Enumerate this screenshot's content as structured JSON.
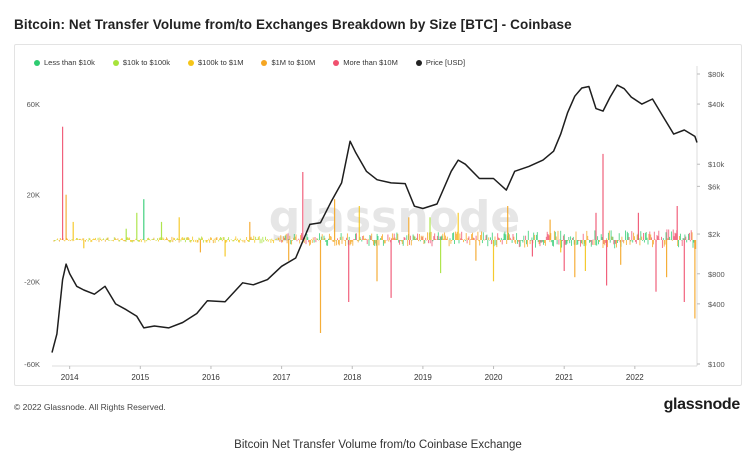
{
  "title": "Bitcoin: Net Transfer Volume from/to Exchanges Breakdown by Size [BTC] - Coinbase",
  "legend": [
    {
      "label": "Less than $10k",
      "color": "#2ecc71"
    },
    {
      "label": "$10k to $100k",
      "color": "#a7e33b"
    },
    {
      "label": "$100k to $1M",
      "color": "#f5c518"
    },
    {
      "label": "$1M to $10M",
      "color": "#f5a623"
    },
    {
      "label": "More than $10M",
      "color": "#f0506e"
    },
    {
      "label": "Price [USD]",
      "color": "#222222"
    }
  ],
  "watermark": "glassnode",
  "footer": {
    "copyright": "© 2022 Glassnode. All Rights Reserved.",
    "brand": "glassnode"
  },
  "caption": "Bitcoin Net Transfer Volume from/to Coinbase Exchange",
  "chart_data": {
    "type": "bar",
    "title": "Bitcoin: Net Transfer Volume from/to Exchanges Breakdown by Size [BTC] - Coinbase",
    "left_axis": {
      "ticks": [
        60000,
        20000,
        -20000,
        -60000
      ],
      "tick_labels": [
        "60K",
        "20K",
        "-20K",
        "-60K"
      ],
      "ylim": [
        -60000,
        60000
      ]
    },
    "right_axis": {
      "scale": "log",
      "ticks": [
        80000,
        40000,
        10000,
        6000,
        2000,
        800,
        400,
        100
      ],
      "tick_labels": [
        "$80k",
        "$40k",
        "$10k",
        "$6k",
        "$2k",
        "$800",
        "$400",
        "$100"
      ],
      "ylim": [
        100,
        80000
      ]
    },
    "x_axis": {
      "tick_labels": [
        "2014",
        "2015",
        "2016",
        "2017",
        "2018",
        "2019",
        "2020",
        "2021",
        "2022"
      ],
      "range": [
        2013.75,
        2022.88
      ]
    },
    "legend_position": "top-left",
    "grid": false,
    "spikes": [
      {
        "t": 2013.9,
        "v": 50000,
        "series": "More than $10M"
      },
      {
        "t": 2013.95,
        "v": 20000,
        "series": "$1M to $10M"
      },
      {
        "t": 2014.05,
        "v": 8000,
        "series": "$100k to $1M"
      },
      {
        "t": 2014.2,
        "v": -4000,
        "series": "$100k to $1M"
      },
      {
        "t": 2014.8,
        "v": 5000,
        "series": "$10k to $100k"
      },
      {
        "t": 2014.95,
        "v": 12000,
        "series": "$10k to $100k"
      },
      {
        "t": 2015.05,
        "v": 18000,
        "series": "Less than $10k"
      },
      {
        "t": 2015.3,
        "v": 8000,
        "series": "$10k to $100k"
      },
      {
        "t": 2015.55,
        "v": 10000,
        "series": "$100k to $1M"
      },
      {
        "t": 2015.85,
        "v": -6000,
        "series": "$1M to $10M"
      },
      {
        "t": 2016.2,
        "v": -8000,
        "series": "$100k to $1M"
      },
      {
        "t": 2016.55,
        "v": 8000,
        "series": "$1M to $10M"
      },
      {
        "t": 2017.1,
        "v": -10000,
        "series": "$1M to $10M"
      },
      {
        "t": 2017.3,
        "v": 30000,
        "series": "More than $10M"
      },
      {
        "t": 2017.55,
        "v": -45000,
        "series": "$1M to $10M"
      },
      {
        "t": 2017.75,
        "v": 18000,
        "series": "$1M to $10M"
      },
      {
        "t": 2017.95,
        "v": -30000,
        "series": "More than $10M"
      },
      {
        "t": 2018.1,
        "v": 15000,
        "series": "$100k to $1M"
      },
      {
        "t": 2018.35,
        "v": -20000,
        "series": "$1M to $10M"
      },
      {
        "t": 2018.55,
        "v": -28000,
        "series": "More than $10M"
      },
      {
        "t": 2018.8,
        "v": 10000,
        "series": "$1M to $10M"
      },
      {
        "t": 2019.1,
        "v": 10000,
        "series": "$10k to $100k"
      },
      {
        "t": 2019.25,
        "v": -16000,
        "series": "$10k to $100k"
      },
      {
        "t": 2019.5,
        "v": 12000,
        "series": "$100k to $1M"
      },
      {
        "t": 2019.75,
        "v": -10000,
        "series": "$1M to $10M"
      },
      {
        "t": 2020.0,
        "v": -20000,
        "series": "$100k to $1M"
      },
      {
        "t": 2020.2,
        "v": 15000,
        "series": "$1M to $10M"
      },
      {
        "t": 2020.55,
        "v": -8000,
        "series": "More than $10M"
      },
      {
        "t": 2020.8,
        "v": 9000,
        "series": "$1M to $10M"
      },
      {
        "t": 2020.95,
        "v": -6000,
        "series": "$100k to $1M"
      },
      {
        "t": 2021.0,
        "v": -15000,
        "series": "More than $10M"
      },
      {
        "t": 2021.15,
        "v": -18000,
        "series": "$1M to $10M"
      },
      {
        "t": 2021.3,
        "v": -15000,
        "series": "$100k to $1M"
      },
      {
        "t": 2021.45,
        "v": 12000,
        "series": "More than $10M"
      },
      {
        "t": 2021.55,
        "v": 38000,
        "series": "More than $10M"
      },
      {
        "t": 2021.6,
        "v": -22000,
        "series": "More than $10M"
      },
      {
        "t": 2021.8,
        "v": -12000,
        "series": "$1M to $10M"
      },
      {
        "t": 2022.05,
        "v": 12000,
        "series": "More than $10M"
      },
      {
        "t": 2022.3,
        "v": -25000,
        "series": "More than $10M"
      },
      {
        "t": 2022.45,
        "v": -18000,
        "series": "$1M to $10M"
      },
      {
        "t": 2022.6,
        "v": 15000,
        "series": "More than $10M"
      },
      {
        "t": 2022.7,
        "v": -30000,
        "series": "More than $10M"
      },
      {
        "t": 2022.85,
        "v": -38000,
        "series": "$1M to $10M"
      }
    ],
    "price_series": {
      "name": "Price [USD]",
      "t": [
        2013.75,
        2013.82,
        2013.9,
        2013.95,
        2014.0,
        2014.1,
        2014.2,
        2014.35,
        2014.5,
        2014.65,
        2014.8,
        2014.95,
        2015.05,
        2015.2,
        2015.4,
        2015.6,
        2015.8,
        2015.95,
        2016.2,
        2016.45,
        2016.6,
        2016.8,
        2017.0,
        2017.2,
        2017.4,
        2017.55,
        2017.7,
        2017.85,
        2017.97,
        2018.05,
        2018.2,
        2018.35,
        2018.55,
        2018.75,
        2018.88,
        2019.0,
        2019.2,
        2019.4,
        2019.5,
        2019.6,
        2019.8,
        2020.0,
        2020.18,
        2020.3,
        2020.5,
        2020.7,
        2020.85,
        2020.95,
        2021.05,
        2021.15,
        2021.25,
        2021.35,
        2021.45,
        2021.55,
        2021.65,
        2021.75,
        2021.85,
        2021.95,
        2022.1,
        2022.25,
        2022.4,
        2022.55,
        2022.7,
        2022.85,
        2022.88
      ],
      "price": [
        130,
        200,
        700,
        1000,
        800,
        600,
        550,
        500,
        600,
        400,
        350,
        300,
        230,
        240,
        230,
        260,
        320,
        430,
        420,
        650,
        620,
        700,
        950,
        1150,
        2500,
        2600,
        4200,
        6500,
        17000,
        13000,
        8500,
        7000,
        6500,
        6400,
        3800,
        3600,
        4000,
        8500,
        11000,
        10000,
        7200,
        7200,
        5500,
        8500,
        9500,
        11000,
        13500,
        20000,
        33000,
        48000,
        58000,
        60000,
        36000,
        34000,
        47000,
        62000,
        57000,
        47000,
        40000,
        45000,
        30000,
        20000,
        22000,
        19000,
        16500
      ]
    }
  }
}
